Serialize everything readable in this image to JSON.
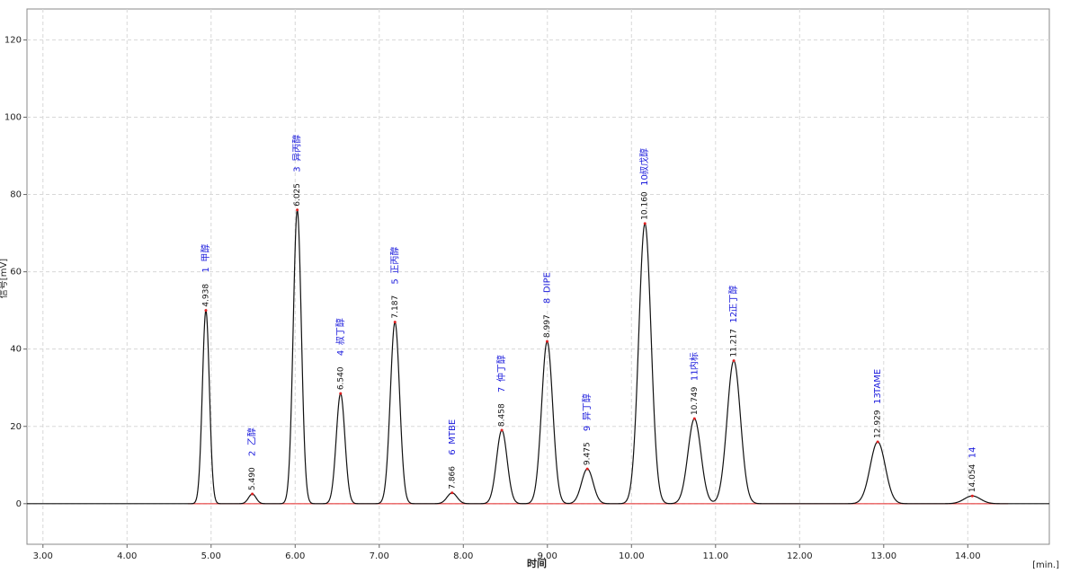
{
  "chart_data": {
    "type": "chromatogram",
    "x_label": "时间",
    "x_unit": "[min.]",
    "y_label": "信号[mV]",
    "xlim": [
      2.81,
      14.97
    ],
    "ylim": [
      -10.5,
      128
    ],
    "xticks": [
      {
        "value": 3,
        "label": "3.00"
      },
      {
        "value": 4,
        "label": "4.00"
      },
      {
        "value": 5,
        "label": "5.00"
      },
      {
        "value": 6,
        "label": "6.00"
      },
      {
        "value": 7,
        "label": "7.00"
      },
      {
        "value": 8,
        "label": "8.00"
      },
      {
        "value": 9,
        "label": "9.00"
      },
      {
        "value": 10,
        "label": "10.00"
      },
      {
        "value": 11,
        "label": "11.00"
      },
      {
        "value": 12,
        "label": "12.00"
      },
      {
        "value": 13,
        "label": "13.00"
      },
      {
        "value": 14,
        "label": "14.00"
      }
    ],
    "yticks": [
      0,
      20,
      40,
      60,
      80,
      100,
      120
    ],
    "grid": true,
    "color": "#111111",
    "label_color": "#1a1adc",
    "baseline_color": "#e02020",
    "peaks": {
      "times": [
        4.938,
        5.49,
        6.025,
        6.54,
        7.187,
        7.866,
        8.458,
        8.997,
        9.475,
        10.16,
        10.749,
        11.217,
        12.929,
        14.054
      ],
      "time_labels": [
        "4.938",
        "5.490",
        "6.025",
        "6.540",
        "7.187",
        "7.866",
        "8.458",
        "8.997",
        "9.475",
        "10.160",
        "10.749",
        "11.217",
        "12.929",
        "14.054"
      ],
      "heights": [
        50,
        2.5,
        76,
        28.5,
        47,
        2.8,
        19,
        42,
        9,
        72.5,
        22,
        37,
        16,
        2
      ],
      "numbers": [
        1,
        2,
        3,
        4,
        5,
        6,
        7,
        8,
        9,
        10,
        11,
        12,
        13,
        14
      ],
      "names": [
        "甲醇",
        "乙醇",
        "异丙醇",
        "叔丁醇",
        "正丙醇",
        "MTBE",
        "仲丁醇",
        "DIPE",
        "异丁醇",
        "叔戊醇",
        "内标",
        "正丁醇",
        "TAME",
        null
      ]
    }
  }
}
